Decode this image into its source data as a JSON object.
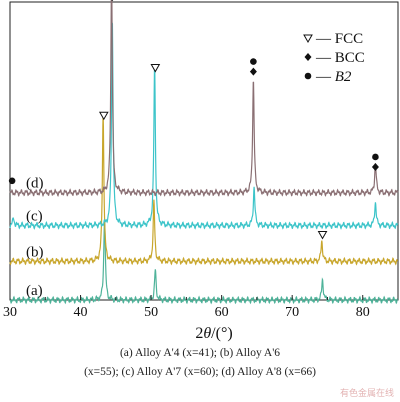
{
  "chart_data": {
    "type": "line",
    "title": "",
    "xlabel_prefix": "2",
    "xlabel_theta": "θ",
    "xlabel_unit": "/(°)",
    "ylabel": "",
    "xlim": [
      30,
      85
    ],
    "x_ticks": [
      30,
      40,
      50,
      60,
      70,
      80
    ],
    "y_ticks_shown": false,
    "grid": false,
    "legend_position": "top-right",
    "legend": [
      {
        "symbol": "▽",
        "marker": "open-triangle-down",
        "label": "— FCC",
        "italic": false
      },
      {
        "symbol": "◆",
        "marker": "diamond",
        "label": "— BCC",
        "italic": false
      },
      {
        "symbol": "●",
        "marker": "circle",
        "label": "— ",
        "label_em": "B2",
        "italic": true
      }
    ],
    "series": [
      {
        "name": "(a)",
        "color": "#4fb39a",
        "baseline_rel": 0.0,
        "peaks": [
          {
            "x": 43.4,
            "h": 0.28
          },
          {
            "x": 50.6,
            "h": 0.1
          },
          {
            "x": 74.3,
            "h": 0.07
          }
        ]
      },
      {
        "name": "(b)",
        "color": "#c8a62c",
        "baseline_rel": 0.13,
        "peaks": [
          {
            "x": 43.2,
            "h": 0.5
          },
          {
            "x": 50.4,
            "h": 0.2
          },
          {
            "x": 74.2,
            "h": 0.07
          }
        ]
      },
      {
        "name": "(c)",
        "color": "#3cc4c9",
        "baseline_rel": 0.25,
        "peaks": [
          {
            "x": 30.5,
            "h": 0.025
          },
          {
            "x": 44.5,
            "h": 0.7
          },
          {
            "x": 50.5,
            "h": 0.54
          },
          {
            "x": 64.6,
            "h": 0.13
          },
          {
            "x": 81.8,
            "h": 0.08
          }
        ]
      },
      {
        "name": "(d)",
        "color": "#8a6f73",
        "baseline_rel": 0.36,
        "peaks": [
          {
            "x": 44.4,
            "h": 0.73
          },
          {
            "x": 64.5,
            "h": 0.38
          },
          {
            "x": 81.8,
            "h": 0.1
          }
        ]
      }
    ],
    "annotations": [
      {
        "x": 30.3,
        "level": 0.4,
        "symbols": [
          "●"
        ]
      },
      {
        "x": 43.3,
        "level": 0.62,
        "symbols": [
          "▽"
        ]
      },
      {
        "x": 44.5,
        "level": 1.05,
        "symbols": [
          "●",
          "◆"
        ]
      },
      {
        "x": 50.6,
        "level": 0.78,
        "symbols": [
          "▽"
        ]
      },
      {
        "x": 64.5,
        "level": 0.8,
        "symbols": [
          "●",
          "◆"
        ]
      },
      {
        "x": 74.3,
        "level": 0.22,
        "symbols": [
          "▽"
        ]
      },
      {
        "x": 81.8,
        "level": 0.48,
        "symbols": [
          "●",
          "◆"
        ]
      }
    ]
  },
  "caption": {
    "line1": "(a)  Alloy A'4  (x=41); (b)  Alloy A'6",
    "line2": "(x=55); (c) Alloy A'7 (x=60); (d) Alloy A'8 (x=66)"
  },
  "watermark": "有色金属在线"
}
